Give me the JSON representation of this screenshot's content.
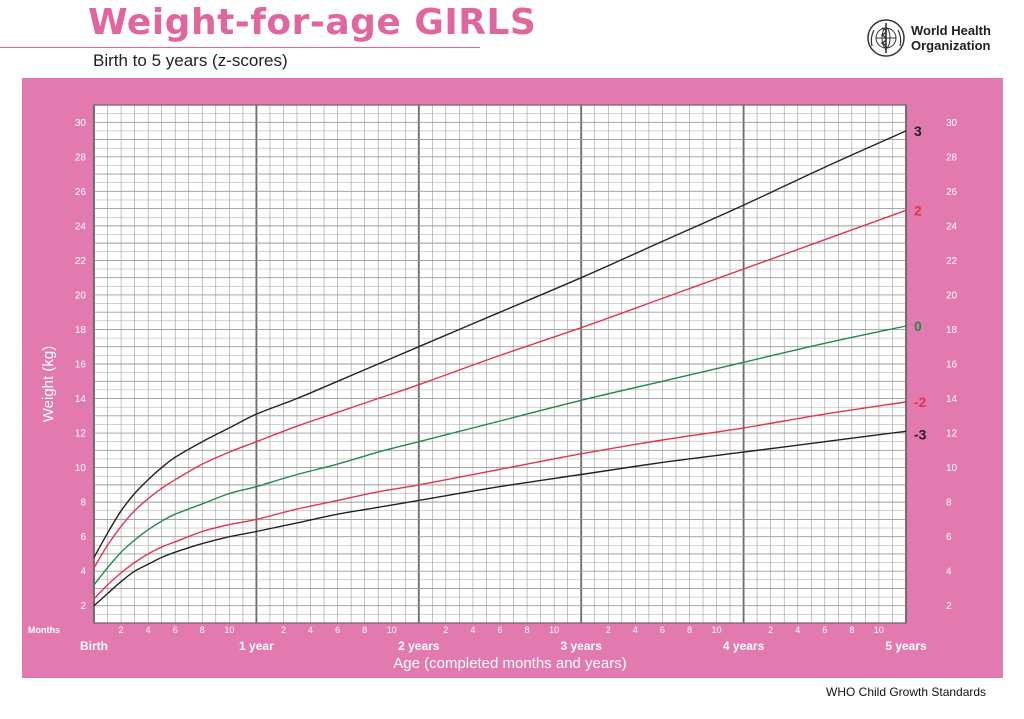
{
  "header": {
    "title": "Weight-for-age GIRLS",
    "subtitle": "Birth to 5 years (z-scores)"
  },
  "organization": {
    "name_line1": "World Health",
    "name_line2": "Organization",
    "logo_icon": "who-emblem-icon"
  },
  "footer": {
    "text": "WHO Child Growth Standards"
  },
  "colors": {
    "frame": "#e27ab0",
    "plot_bg": "#ffffff",
    "title": "#e0669f",
    "sd3": "#222222",
    "sd2": "#e0344f",
    "median": "#1e8a4c"
  },
  "chart_data": {
    "type": "line",
    "title": "Weight-for-age GIRLS",
    "subtitle": "Birth to 5 years (z-scores)",
    "xlabel": "Age (completed months and years)",
    "ylabel": "Weight (kg)",
    "x_unit_label": "Months",
    "xlim": [
      0,
      60
    ],
    "ylim": [
      1,
      31
    ],
    "grid": true,
    "y_ticks": [
      2,
      4,
      6,
      8,
      10,
      12,
      14,
      16,
      18,
      20,
      22,
      24,
      26,
      28,
      30
    ],
    "month_tick_labels": [
      "2",
      "4",
      "6",
      "8",
      "10"
    ],
    "year_labels": [
      {
        "month": 0,
        "label": "Birth"
      },
      {
        "month": 12,
        "label": "1 year"
      },
      {
        "month": 24,
        "label": "2 years"
      },
      {
        "month": 36,
        "label": "3 years"
      },
      {
        "month": 48,
        "label": "4 years"
      },
      {
        "month": 60,
        "label": "5 years"
      }
    ],
    "x": [
      0,
      1,
      2,
      3,
      4,
      5,
      6,
      8,
      10,
      12,
      15,
      18,
      21,
      24,
      30,
      36,
      42,
      48,
      54,
      60
    ],
    "series": [
      {
        "name": "3",
        "color_key": "sd3",
        "values": [
          4.8,
          6.2,
          7.5,
          8.5,
          9.3,
          10.0,
          10.6,
          11.5,
          12.3,
          13.1,
          14.0,
          15.0,
          16.0,
          17.0,
          19.0,
          21.0,
          23.1,
          25.2,
          27.4,
          29.5
        ]
      },
      {
        "name": "2",
        "color_key": "sd2",
        "values": [
          4.2,
          5.5,
          6.6,
          7.5,
          8.2,
          8.8,
          9.3,
          10.2,
          10.9,
          11.5,
          12.4,
          13.2,
          14.0,
          14.8,
          16.5,
          18.1,
          19.8,
          21.5,
          23.2,
          24.9
        ]
      },
      {
        "name": "0",
        "color_key": "median",
        "values": [
          3.2,
          4.2,
          5.1,
          5.8,
          6.4,
          6.9,
          7.3,
          7.9,
          8.5,
          8.9,
          9.6,
          10.2,
          10.9,
          11.5,
          12.7,
          13.9,
          15.0,
          16.1,
          17.2,
          18.2
        ]
      },
      {
        "name": "-2",
        "color_key": "sd2",
        "values": [
          2.4,
          3.2,
          3.9,
          4.5,
          5.0,
          5.4,
          5.7,
          6.3,
          6.7,
          7.0,
          7.6,
          8.1,
          8.6,
          9.0,
          9.9,
          10.8,
          11.6,
          12.3,
          13.1,
          13.8
        ]
      },
      {
        "name": "-3",
        "color_key": "sd3",
        "values": [
          2.0,
          2.7,
          3.4,
          4.0,
          4.4,
          4.8,
          5.1,
          5.6,
          6.0,
          6.3,
          6.8,
          7.3,
          7.7,
          8.1,
          8.9,
          9.6,
          10.3,
          10.9,
          11.5,
          12.1
        ]
      }
    ]
  }
}
